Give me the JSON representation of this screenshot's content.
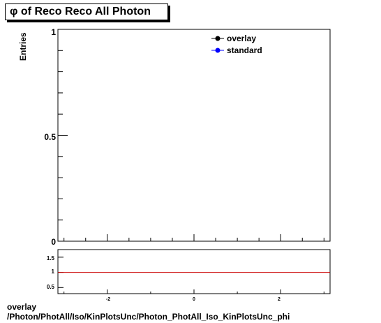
{
  "chart_data": [
    {
      "type": "line",
      "title": "φ of Reco Reco All Photon",
      "ylabel": "Entries",
      "xlabel": "",
      "xlim": [
        -3.14,
        3.14
      ],
      "ylim": [
        0,
        1
      ],
      "y_ticks": [
        "0",
        "0.5",
        "1"
      ],
      "legend_position": "top-right",
      "series": [
        {
          "name": "overlay",
          "color": "#000000",
          "values": []
        },
        {
          "name": "standard",
          "color": "#0000ff",
          "values": []
        }
      ]
    },
    {
      "type": "line",
      "title": "",
      "xlabel": "",
      "ylabel": "",
      "xlim": [
        -3.14,
        3.14
      ],
      "ylim": [
        0.3,
        1.75
      ],
      "x_ticks": [
        "-2",
        "0",
        "2"
      ],
      "y_ticks": [
        "0.5",
        "1",
        "1.5"
      ],
      "reference_line": {
        "y": 1,
        "color": "#cc0000"
      }
    }
  ],
  "footer": {
    "line1": "overlay",
    "line2": "/Photon/PhotAll/Iso/KinPlotsUnc/Photon_PhotAll_Iso_KinPlotsUnc_phi"
  }
}
